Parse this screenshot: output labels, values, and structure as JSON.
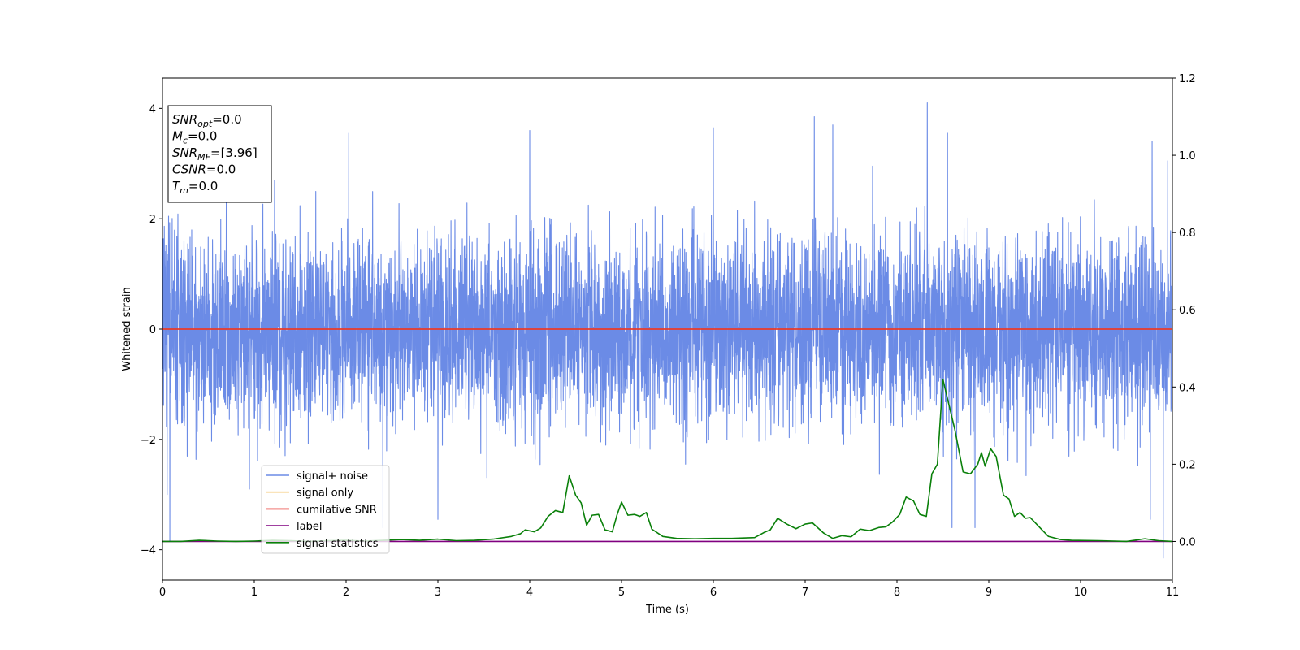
{
  "chart_data": {
    "type": "line",
    "title": "",
    "xlabel": "Time (s)",
    "ylabel": "Whitened strain",
    "xlim": [
      0,
      11
    ],
    "ylim": [
      -4.55,
      4.55
    ],
    "y2lim": [
      -0.1,
      1.2
    ],
    "x_ticks": [
      "0",
      "1",
      "2",
      "3",
      "4",
      "5",
      "6",
      "7",
      "8",
      "9",
      "10",
      "11"
    ],
    "x_tick_values": [
      0,
      1,
      2,
      3,
      4,
      5,
      6,
      7,
      8,
      9,
      10,
      11
    ],
    "y_ticks": [
      "−4",
      "−2",
      "0",
      "2",
      "4"
    ],
    "y_tick_values": [
      -4,
      -2,
      0,
      2,
      4
    ],
    "y2_ticks": [
      "0.0",
      "0.2",
      "0.4",
      "0.6",
      "0.8",
      "1.0",
      "1.2"
    ],
    "y2_tick_values": [
      0.0,
      0.2,
      0.4,
      0.6,
      0.8,
      1.0,
      1.2
    ],
    "grid": false,
    "legend_position": "lower-left",
    "series": [
      {
        "name": "signal+ noise",
        "axis": "left",
        "color": "#6b8be6",
        "noise_sigma": 0.85,
        "noise_seed": 7,
        "sample_rate_hz": 512,
        "peaks": [
          [
            1.22,
            2.7
          ],
          [
            2.03,
            3.55
          ],
          [
            4.0,
            3.6
          ],
          [
            6.0,
            3.65
          ],
          [
            7.1,
            3.85
          ],
          [
            7.3,
            3.7
          ],
          [
            8.33,
            4.1
          ],
          [
            8.55,
            3.55
          ],
          [
            10.78,
            3.4
          ],
          [
            10.95,
            3.05
          ],
          [
            0.05,
            -3.0
          ],
          [
            0.08,
            -3.85
          ],
          [
            2.4,
            -3.6
          ],
          [
            3.0,
            -3.45
          ],
          [
            8.6,
            -3.6
          ],
          [
            8.85,
            -3.6
          ],
          [
            10.9,
            -4.15
          ],
          [
            10.76,
            -3.45
          ]
        ]
      },
      {
        "name": "signal only",
        "axis": "left",
        "color": "#f5c974",
        "x": [
          0,
          11
        ],
        "y": [
          0,
          0
        ]
      },
      {
        "name": "cumilative SNR",
        "axis": "left",
        "color": "#e8231c",
        "x": [
          0,
          11
        ],
        "y": [
          0,
          0
        ]
      },
      {
        "name": "label",
        "axis": "right",
        "color": "#800080",
        "x": [
          0,
          11
        ],
        "y": [
          0,
          0
        ]
      },
      {
        "name": "signal statistics",
        "axis": "right",
        "color": "#0a800a",
        "x": [
          0.0,
          0.2,
          0.4,
          0.6,
          0.8,
          1.0,
          1.2,
          1.4,
          1.6,
          1.8,
          2.0,
          2.2,
          2.4,
          2.6,
          2.8,
          3.0,
          3.2,
          3.4,
          3.6,
          3.8,
          3.9,
          3.95,
          4.05,
          4.12,
          4.2,
          4.28,
          4.36,
          4.43,
          4.5,
          4.56,
          4.62,
          4.68,
          4.75,
          4.82,
          4.9,
          4.95,
          5.0,
          5.07,
          5.14,
          5.2,
          5.27,
          5.33,
          5.45,
          5.6,
          5.8,
          6.0,
          6.2,
          6.45,
          6.55,
          6.62,
          6.7,
          6.8,
          6.9,
          7.0,
          7.08,
          7.2,
          7.3,
          7.4,
          7.5,
          7.6,
          7.7,
          7.8,
          7.88,
          7.95,
          8.03,
          8.1,
          8.18,
          8.25,
          8.32,
          8.38,
          8.44,
          8.5,
          8.57,
          8.63,
          8.72,
          8.8,
          8.88,
          8.92,
          8.96,
          9.02,
          9.08,
          9.16,
          9.22,
          9.28,
          9.34,
          9.4,
          9.45,
          9.5,
          9.58,
          9.65,
          9.78,
          9.9,
          10.2,
          10.5,
          10.7,
          10.85,
          11.0
        ],
        "y": [
          0.0,
          0.0,
          0.003,
          0.001,
          0.0,
          0.001,
          0.003,
          0.002,
          0.0,
          0.002,
          0.003,
          0.001,
          0.003,
          0.005,
          0.003,
          0.006,
          0.002,
          0.003,
          0.006,
          0.013,
          0.02,
          0.03,
          0.025,
          0.035,
          0.065,
          0.08,
          0.075,
          0.17,
          0.12,
          0.1,
          0.042,
          0.068,
          0.07,
          0.03,
          0.025,
          0.068,
          0.102,
          0.068,
          0.07,
          0.065,
          0.075,
          0.032,
          0.013,
          0.008,
          0.007,
          0.008,
          0.008,
          0.01,
          0.023,
          0.03,
          0.06,
          0.045,
          0.033,
          0.045,
          0.048,
          0.022,
          0.008,
          0.015,
          0.012,
          0.032,
          0.028,
          0.036,
          0.038,
          0.05,
          0.07,
          0.115,
          0.105,
          0.07,
          0.065,
          0.175,
          0.2,
          0.42,
          0.35,
          0.29,
          0.18,
          0.175,
          0.2,
          0.23,
          0.195,
          0.24,
          0.22,
          0.12,
          0.11,
          0.065,
          0.075,
          0.06,
          0.062,
          0.05,
          0.03,
          0.013,
          0.005,
          0.003,
          0.002,
          0.0,
          0.007,
          0.002,
          0.0
        ]
      }
    ],
    "annotation_lines": [
      {
        "base": "SNR",
        "sub": "opt",
        "value": "=0.0"
      },
      {
        "base": "M",
        "sub": "c",
        "value": "=0.0"
      },
      {
        "base": "SNR",
        "sub": "MF",
        "value": "=[3.96]"
      },
      {
        "base": "CSNR",
        "sub": "",
        "value": "=0.0"
      },
      {
        "base": "T",
        "sub": "m",
        "value": "=0.0"
      }
    ]
  }
}
